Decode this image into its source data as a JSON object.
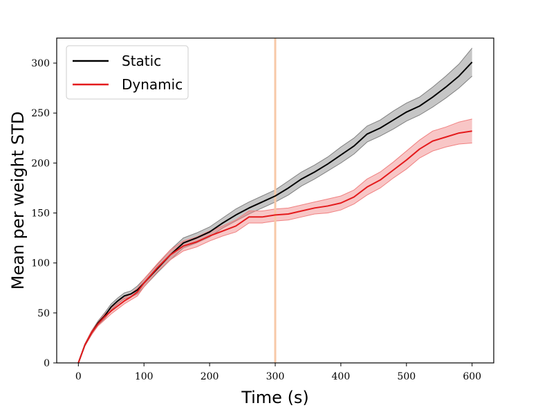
{
  "chart_data": {
    "type": "line",
    "title": "",
    "xlabel": "Time (s)",
    "ylabel": "Mean per weight STD",
    "xlim": [
      -33,
      633
    ],
    "ylim": [
      0,
      325
    ],
    "xticks": [
      0,
      100,
      200,
      300,
      400,
      500,
      600
    ],
    "yticks": [
      0,
      50,
      100,
      150,
      200,
      250,
      300
    ],
    "grid": false,
    "legend_position": "top-left",
    "vline": {
      "x": 300,
      "color": "#f7c9a8"
    },
    "series": [
      {
        "name": "Static",
        "color": "#000000",
        "band_color": "#808080",
        "x": [
          0,
          10,
          20,
          30,
          40,
          50,
          60,
          70,
          80,
          90,
          100,
          120,
          140,
          160,
          180,
          200,
          220,
          240,
          260,
          280,
          300,
          320,
          340,
          360,
          380,
          400,
          420,
          440,
          460,
          480,
          500,
          520,
          540,
          560,
          580,
          600
        ],
        "y": [
          0,
          18,
          30,
          40,
          47,
          56,
          62,
          67,
          69,
          73,
          80,
          94,
          108,
          120,
          125,
          131,
          140,
          148,
          155,
          161,
          167,
          175,
          184,
          191,
          199,
          208,
          217,
          229,
          235,
          243,
          251,
          257,
          266,
          276,
          287,
          301
        ],
        "err": [
          0,
          1,
          2,
          2,
          3,
          3,
          3,
          3,
          3,
          4,
          4,
          4,
          5,
          5,
          5,
          5,
          5,
          6,
          6,
          6,
          6,
          7,
          7,
          7,
          7,
          8,
          8,
          8,
          8,
          9,
          9,
          9,
          10,
          11,
          12,
          14
        ]
      },
      {
        "name": "Dynamic",
        "color": "#e41a1c",
        "band_color": "#f08080",
        "x": [
          0,
          10,
          20,
          30,
          40,
          50,
          60,
          70,
          80,
          90,
          100,
          120,
          140,
          160,
          180,
          200,
          220,
          240,
          260,
          280,
          300,
          320,
          340,
          360,
          380,
          400,
          420,
          440,
          460,
          480,
          500,
          520,
          540,
          560,
          580,
          600
        ],
        "y": [
          0,
          18,
          30,
          39,
          46,
          52,
          57,
          62,
          66,
          71,
          80,
          95,
          108,
          117,
          121,
          127,
          132,
          137,
          146,
          146,
          148,
          149,
          152,
          155,
          157,
          160,
          166,
          176,
          183,
          193,
          203,
          214,
          222,
          226,
          230,
          232
        ],
        "err": [
          0,
          1,
          2,
          2,
          3,
          3,
          3,
          3,
          3,
          4,
          4,
          4,
          5,
          5,
          5,
          5,
          5,
          6,
          6,
          6,
          6,
          6,
          6,
          6,
          7,
          7,
          7,
          8,
          8,
          8,
          9,
          9,
          10,
          10,
          11,
          12
        ]
      }
    ]
  }
}
